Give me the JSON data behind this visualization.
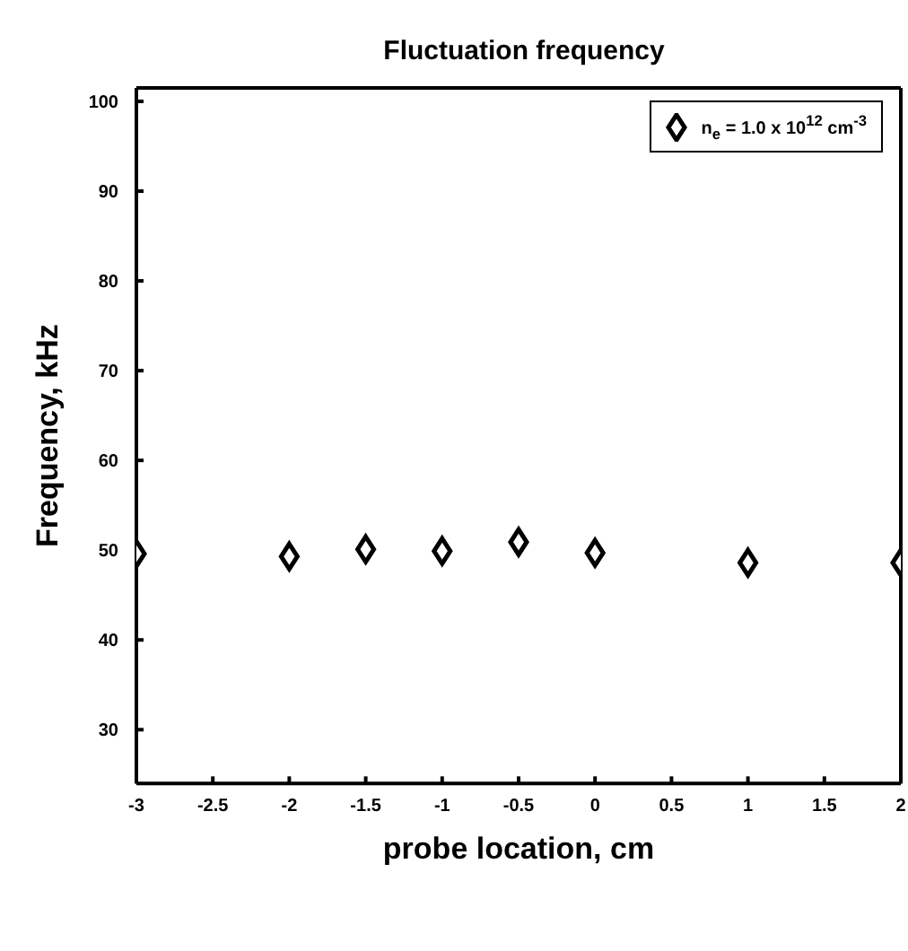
{
  "chart_data": {
    "type": "scatter",
    "title": "Fluctuation frequency",
    "xlabel": "probe location, cm",
    "ylabel": "Frequency, kHz",
    "x": [
      -3,
      -2,
      -1.5,
      -1,
      -0.5,
      0,
      1,
      2
    ],
    "series": [
      {
        "name": "n$_{e}$ = 1.0 x 10$^{12}$ cm$^{-3}$",
        "color": "#000000",
        "values": [
          49.6,
          49.3,
          50.1,
          49.9,
          50.9,
          49.7,
          48.6,
          48.6
        ]
      }
    ],
    "xlim": [
      -3,
      2
    ],
    "xticks": [
      -3,
      -2.5,
      -2,
      -1.5,
      -1,
      -0.5,
      0,
      0.5,
      1,
      1.5,
      2
    ],
    "ylim": [
      24,
      101.5
    ],
    "yticks": [
      30,
      40,
      50,
      60,
      70,
      80,
      90,
      100
    ],
    "marker": "diamond",
    "legend": "top right",
    "grid": false
  }
}
